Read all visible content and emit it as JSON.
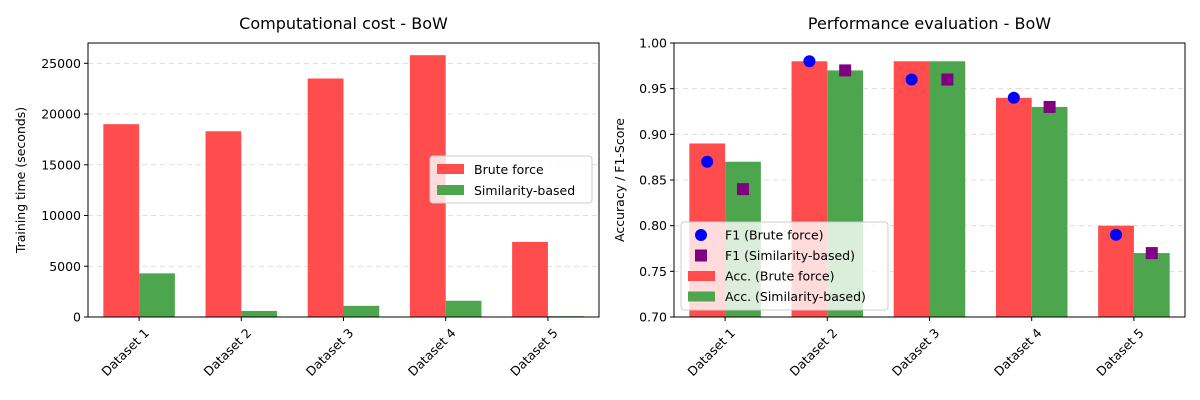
{
  "chart_data": [
    {
      "type": "bar",
      "title": "Computational cost - BoW",
      "xlabel": "",
      "ylabel": "Training time (seconds)",
      "categories": [
        "Dataset 1",
        "Dataset 2",
        "Dataset 3",
        "Dataset 4",
        "Dataset 5"
      ],
      "ylim": [
        0,
        27000
      ],
      "yticks": [
        0,
        5000,
        10000,
        15000,
        20000,
        25000
      ],
      "grid": "y-dashed",
      "legend_position": "center-right",
      "series": [
        {
          "name": "Brute force",
          "color": "#ff4d4d",
          "values": [
            19000,
            18300,
            23500,
            25800,
            7400
          ]
        },
        {
          "name": "Similarity-based",
          "color": "#4da64d",
          "values": [
            4300,
            600,
            1100,
            1600,
            80
          ]
        }
      ]
    },
    {
      "type": "bar",
      "title": "Performance evaluation - BoW",
      "xlabel": "",
      "ylabel": "Accuracy / F1-Score",
      "categories": [
        "Dataset 1",
        "Dataset 2",
        "Dataset 3",
        "Dataset 4",
        "Dataset 5"
      ],
      "ylim": [
        0.7,
        1.0
      ],
      "yticks": [
        0.7,
        0.75,
        0.8,
        0.85,
        0.9,
        0.95,
        1.0
      ],
      "grid": "y-dashed",
      "legend_position": "lower-left",
      "series": [
        {
          "name": "Acc. (Brute force)",
          "color": "#ff4d4d",
          "values": [
            0.89,
            0.98,
            0.98,
            0.94,
            0.8
          ]
        },
        {
          "name": "Acc. (Similarity-based)",
          "color": "#4da64d",
          "values": [
            0.87,
            0.97,
            0.98,
            0.93,
            0.77
          ]
        }
      ],
      "markers": [
        {
          "name": "F1 (Brute force)",
          "color": "#0000ff",
          "shape": "circle",
          "values": [
            0.87,
            0.98,
            0.96,
            0.94,
            0.79
          ]
        },
        {
          "name": "F1 (Similarity-based)",
          "color": "#800080",
          "shape": "square",
          "values": [
            0.84,
            0.97,
            0.96,
            0.93,
            0.77
          ]
        }
      ]
    }
  ]
}
